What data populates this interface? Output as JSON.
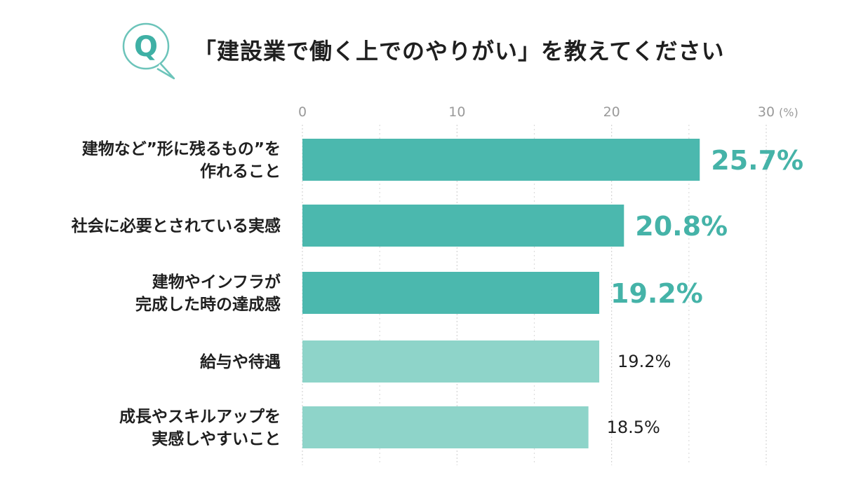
{
  "question": {
    "badge_letter": "Q",
    "title": "「建設業で働く上でのやりがい」を教えてください"
  },
  "colors": {
    "accent_dark": "#4bb8ae",
    "accent_light": "#8ed4c9",
    "accent_text": "#45b3a8",
    "grid": "#d4d4d4"
  },
  "chart_data": {
    "type": "bar",
    "orientation": "horizontal",
    "title": "「建設業で働く上でのやりがい」を教えてください",
    "x_ticks": [
      "0",
      "10",
      "20",
      "30"
    ],
    "x_unit": "(%)",
    "xlim": [
      0,
      30
    ],
    "grid": true,
    "categories": [
      [
        "建物など”形に残るもの”を",
        "作れること"
      ],
      [
        "社会に必要とされている実感"
      ],
      [
        "建物やインフラが",
        "完成した時の達成感"
      ],
      [
        "給与や待遇"
      ],
      [
        "成長やスキルアップを",
        "実感しやすいこと"
      ]
    ],
    "values": [
      25.7,
      20.8,
      19.2,
      19.2,
      18.5
    ],
    "value_labels": [
      "25.7%",
      "20.8%",
      "19.2%",
      "19.2%",
      "18.5%"
    ],
    "highlighted": [
      true,
      true,
      true,
      false,
      false
    ]
  }
}
